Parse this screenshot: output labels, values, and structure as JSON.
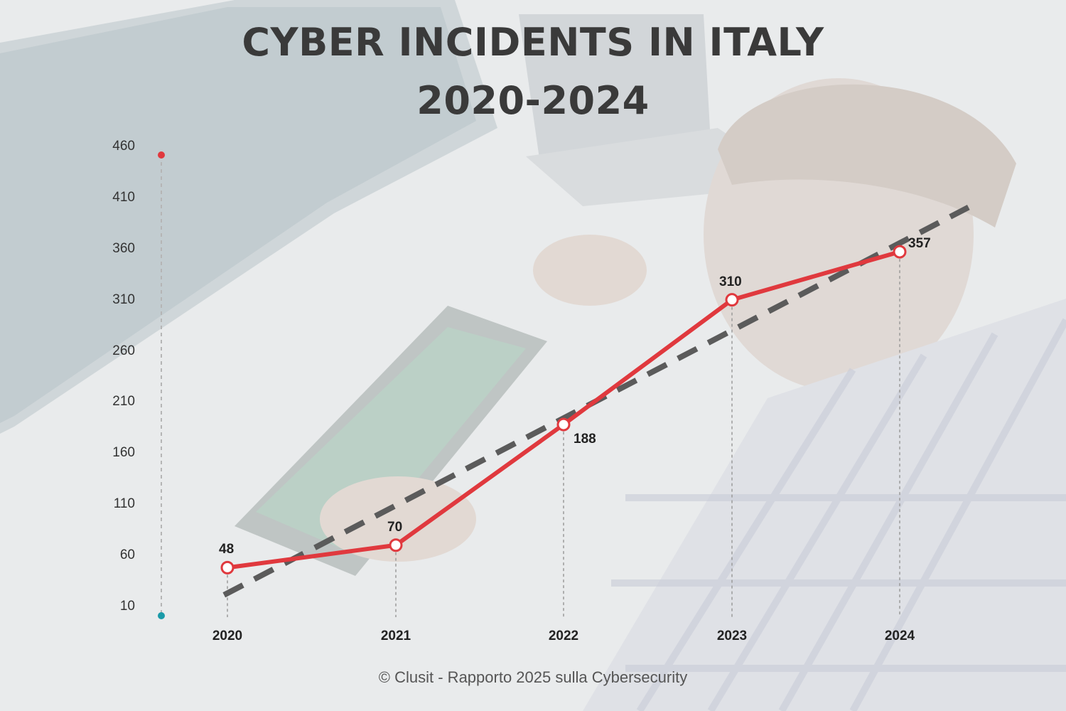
{
  "title_line1": "CYBER INCIDENTS IN ITALY",
  "title_line2": "2020-2024",
  "source": "© Clusit - Rapporto 2025 sulla Cybersecurity",
  "colors": {
    "line": "#e0393e",
    "trend": "#5b5b5b",
    "background_tint": "#e9ebec",
    "axis_top_dot": "#e0393e",
    "axis_bottom_dot": "#1a9aa8"
  },
  "chart_data": {
    "type": "line",
    "categories": [
      "2020",
      "2021",
      "2022",
      "2023",
      "2024"
    ],
    "series": [
      {
        "values": [
          48,
          70,
          188,
          310,
          357
        ]
      }
    ],
    "data_labels": [
      "48",
      "70",
      "188",
      "310",
      "357"
    ],
    "trendline": "dashed linear trend",
    "yticks": [
      "460",
      "410",
      "360",
      "310",
      "260",
      "210",
      "160",
      "110",
      "60",
      "10"
    ],
    "ylim": [
      10,
      460
    ],
    "grid": "vertical dashed drop lines at each year",
    "background": "faded photo of a person at a computer"
  }
}
